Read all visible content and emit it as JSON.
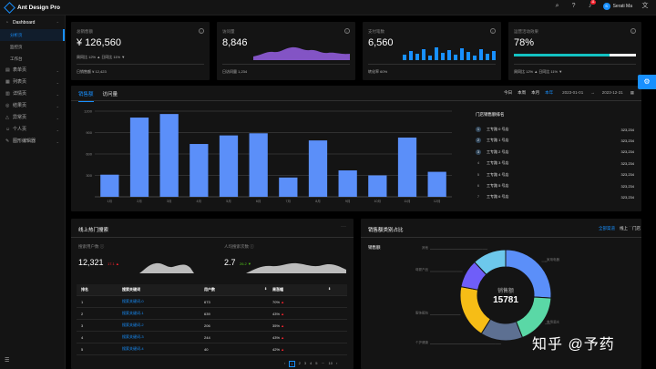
{
  "app": {
    "title": "Ant Design Pro"
  },
  "topbar": {
    "notif_count": "11",
    "user_initials": "S",
    "user_name": "Serati Ma"
  },
  "sidebar": {
    "group_dashboard": "Dashboard",
    "sub_items": [
      "分析页",
      "监控页",
      "工作台"
    ],
    "groups": [
      "表单页",
      "列表页",
      "详情页",
      "结果页",
      "异常页",
      "个人页",
      "图形编辑器"
    ]
  },
  "stats": [
    {
      "title": "总销售额",
      "value": "¥ 126,560",
      "trend": "周同比 12% ▲  日同比 11% ▼",
      "foot_label": "日销售额",
      "foot_value": "¥ 12,423"
    },
    {
      "title": "访问量",
      "value": "8,846",
      "foot_label": "日访问量",
      "foot_value": "1,234"
    },
    {
      "title": "支付笔数",
      "value": "6,560",
      "foot_label": "转化率",
      "foot_value": "60%"
    },
    {
      "title": "运营活动效果",
      "value": "78%",
      "progress": 0.78,
      "foot_label": "周同比 12% ▲  日同比 11% ▼"
    }
  ],
  "sales": {
    "tabs": [
      "销售额",
      "访问量"
    ],
    "ranges": [
      "今日",
      "本周",
      "本月",
      "本年"
    ],
    "date_start": "2023-01-01",
    "date_end": "2023-12-31",
    "rank_title": "门店销售额排名",
    "rank": [
      {
        "n": "1",
        "name": "工专路 0 号店",
        "value": "323,234"
      },
      {
        "n": "2",
        "name": "工专路 1 号店",
        "value": "323,234"
      },
      {
        "n": "3",
        "name": "工专路 2 号店",
        "value": "323,234"
      },
      {
        "n": "4",
        "name": "工专路 3 号店",
        "value": "323,234"
      },
      {
        "n": "5",
        "name": "工专路 4 号店",
        "value": "323,234"
      },
      {
        "n": "6",
        "name": "工专路 5 号店",
        "value": "323,234"
      },
      {
        "n": "7",
        "name": "工专路 6 号店",
        "value": "323,234"
      }
    ]
  },
  "chart_data": [
    {
      "type": "bar",
      "categories": [
        "1月",
        "2月",
        "3月",
        "4月",
        "5月",
        "6月",
        "7月",
        "8月",
        "9月",
        "10月",
        "11月",
        "12月"
      ],
      "values": [
        310,
        1110,
        1160,
        740,
        860,
        890,
        270,
        790,
        370,
        300,
        830,
        350
      ],
      "ylim": [
        0,
        1200
      ],
      "yticks": [
        "1200",
        "900",
        "600",
        "300"
      ],
      "grid": true
    },
    {
      "type": "pie",
      "title": "销售额",
      "center_label": "销售额",
      "center_value": "15781",
      "slices": [
        {
          "label": "家用电器",
          "value": 26,
          "color": "#5B8FF9"
        },
        {
          "label": "食用酒水",
          "value": 18,
          "color": "#5AD8A6"
        },
        {
          "label": "个护健康",
          "value": 15,
          "color": "#5D7092"
        },
        {
          "label": "服饰箱包",
          "value": 19,
          "color": "#F6BD16"
        },
        {
          "label": "母婴产品",
          "value": 10,
          "color": "#6F5EF9"
        },
        {
          "label": "其他",
          "value": 12,
          "color": "#6DC8EC"
        }
      ]
    }
  ],
  "search": {
    "title": "线上热门搜索",
    "users_label": "搜索用户数",
    "users_value": "12,321",
    "users_trend": "17.1",
    "avg_label": "人均搜索次数",
    "avg_value": "2.7",
    "avg_trend": "26.2",
    "headers": [
      "排名",
      "搜索关键词",
      "用户数",
      "周涨幅"
    ],
    "rows": [
      {
        "rank": "1",
        "keyword": "搜索关键词-0",
        "users": "673",
        "change": "70%"
      },
      {
        "rank": "2",
        "keyword": "搜索关键词-1",
        "users": "639",
        "change": "43%"
      },
      {
        "rank": "3",
        "keyword": "搜索关键词-2",
        "users": "206",
        "change": "35%"
      },
      {
        "rank": "4",
        "keyword": "搜索关键词-3",
        "users": "244",
        "change": "43%"
      },
      {
        "rank": "5",
        "keyword": "搜索关键词-4",
        "users": "40",
        "change": "42%"
      }
    ],
    "pager": [
      "‹",
      "1",
      "2",
      "3",
      "4",
      "5",
      "···",
      "10",
      "›"
    ]
  },
  "share": {
    "title": "销售额类别占比",
    "tabs": [
      "全部渠道",
      "线上",
      "门店"
    ]
  },
  "watermark": "知乎 @予药"
}
